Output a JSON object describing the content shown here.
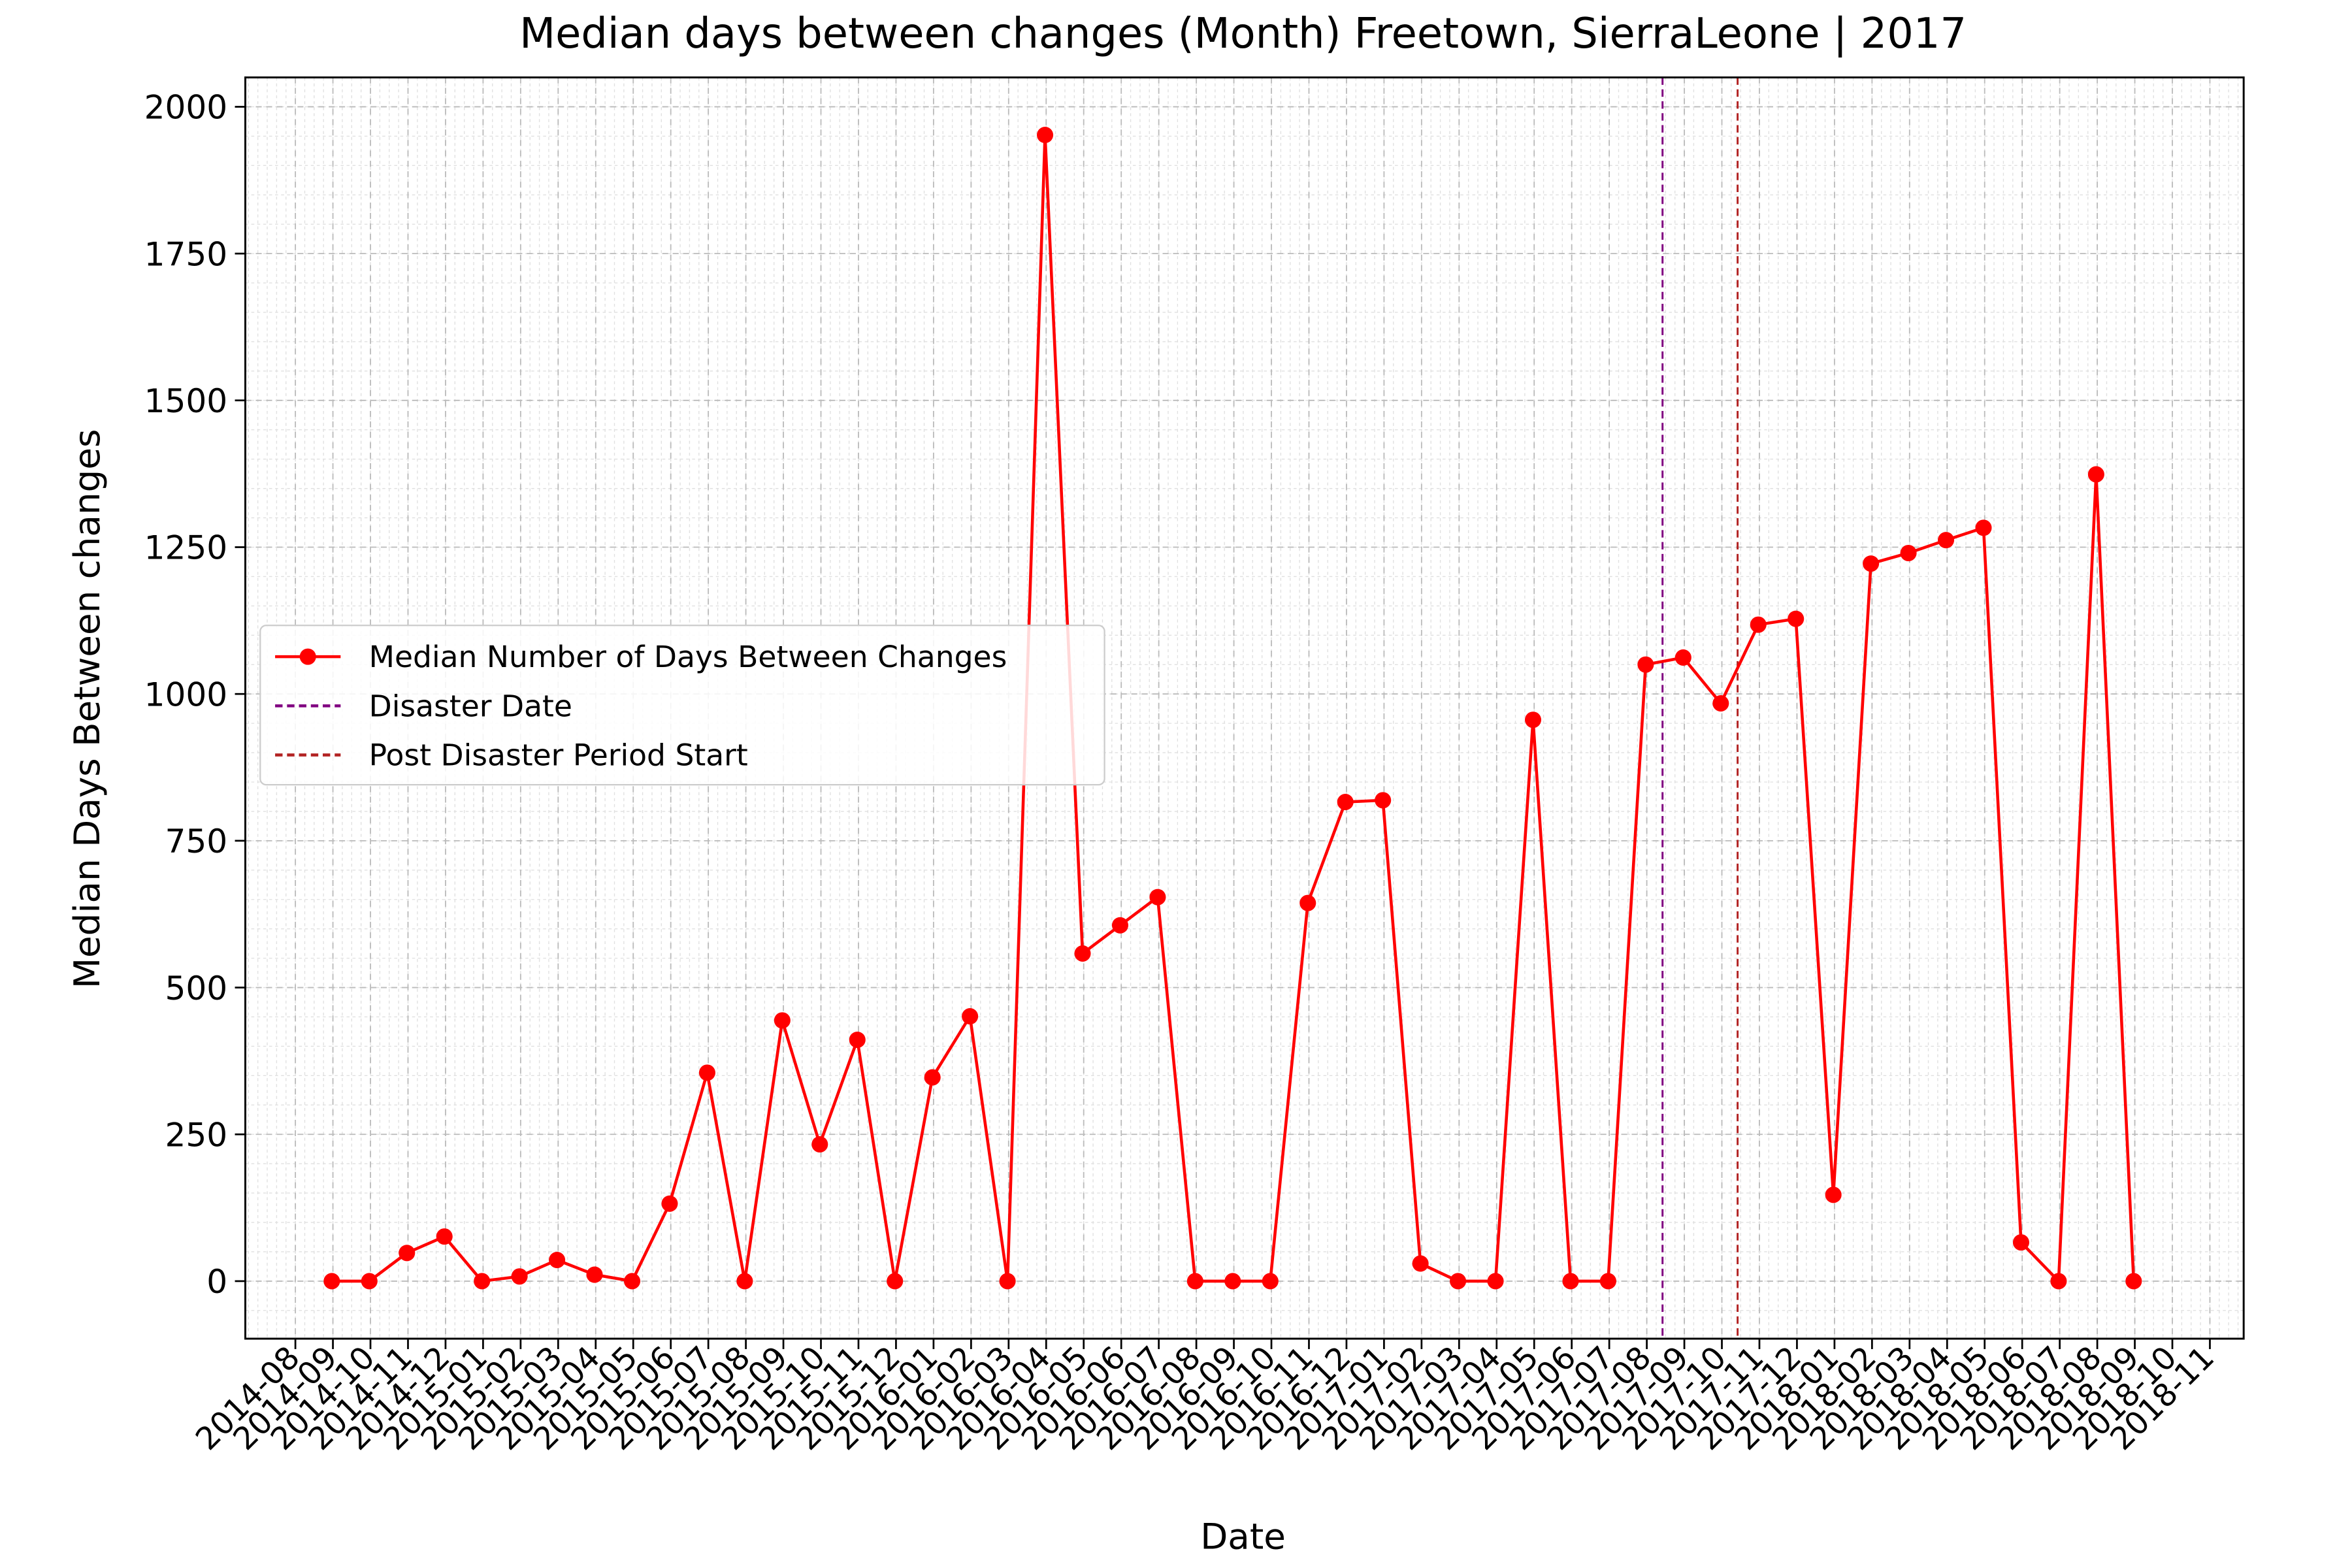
{
  "chart_data": {
    "type": "line",
    "title": "Median days between changes (Month) Freetown, SierraLeone | 2017",
    "x_label": "Date",
    "y_label": "Median Days Between changes",
    "x": [
      "2014-08",
      "2014-09",
      "2014-10",
      "2014-11",
      "2014-12",
      "2015-01",
      "2015-02",
      "2015-03",
      "2015-04",
      "2015-05",
      "2015-06",
      "2015-07",
      "2015-08",
      "2015-09",
      "2015-10",
      "2015-11",
      "2015-12",
      "2016-01",
      "2016-02",
      "2016-03",
      "2016-04",
      "2016-05",
      "2016-06",
      "2016-07",
      "2016-08",
      "2016-09",
      "2016-10",
      "2016-11",
      "2016-12",
      "2017-01",
      "2017-02",
      "2017-03",
      "2017-04",
      "2017-05",
      "2017-06",
      "2017-07",
      "2017-08",
      "2017-09",
      "2017-10",
      "2017-11",
      "2017-12",
      "2018-01",
      "2018-02",
      "2018-03",
      "2018-04",
      "2018-05",
      "2018-06",
      "2018-07",
      "2018-08"
    ],
    "series": [
      {
        "name": "Median Number of Days Between Changes",
        "color": "#ff0000",
        "values": [
          0,
          0,
          48,
          76,
          0,
          8,
          36,
          11,
          0,
          132,
          355,
          0,
          444,
          233,
          411,
          0,
          347,
          451,
          0,
          1952,
          558,
          606,
          654,
          0,
          0,
          0,
          644,
          816,
          819,
          30,
          0,
          0,
          956,
          0,
          0,
          1050,
          1062,
          984,
          1118,
          1128,
          147,
          1222,
          1240,
          1262,
          1283,
          66,
          0,
          1374,
          0
        ]
      }
    ],
    "vlines": [
      {
        "name": "Disaster Date",
        "x": "2017-08-14",
        "color": "#800080"
      },
      {
        "name": "Post Disaster Period Start",
        "x": "2017-10-14",
        "color": "#b22222"
      }
    ],
    "xlim": [
      "2014-06-21",
      "2018-11-28"
    ],
    "xticks": [
      "2014-08",
      "2014-09",
      "2014-10",
      "2014-11",
      "2014-12",
      "2015-01",
      "2015-02",
      "2015-03",
      "2015-04",
      "2015-05",
      "2015-06",
      "2015-07",
      "2015-08",
      "2015-09",
      "2015-10",
      "2015-11",
      "2015-12",
      "2016-01",
      "2016-02",
      "2016-03",
      "2016-04",
      "2016-05",
      "2016-06",
      "2016-07",
      "2016-08",
      "2016-09",
      "2016-10",
      "2016-11",
      "2016-12",
      "2017-01",
      "2017-02",
      "2017-03",
      "2017-04",
      "2017-05",
      "2017-06",
      "2017-07",
      "2017-08",
      "2017-09",
      "2017-10",
      "2017-11",
      "2017-12",
      "2018-01",
      "2018-02",
      "2018-03",
      "2018-04",
      "2018-05",
      "2018-06",
      "2018-07",
      "2018-08",
      "2018-09",
      "2018-10",
      "2018-11"
    ],
    "ylim": [
      -98,
      2050
    ],
    "yticks": [
      0,
      250,
      500,
      750,
      1000,
      1250,
      1500,
      1750,
      2000
    ],
    "grid": true,
    "legend": "center left"
  }
}
